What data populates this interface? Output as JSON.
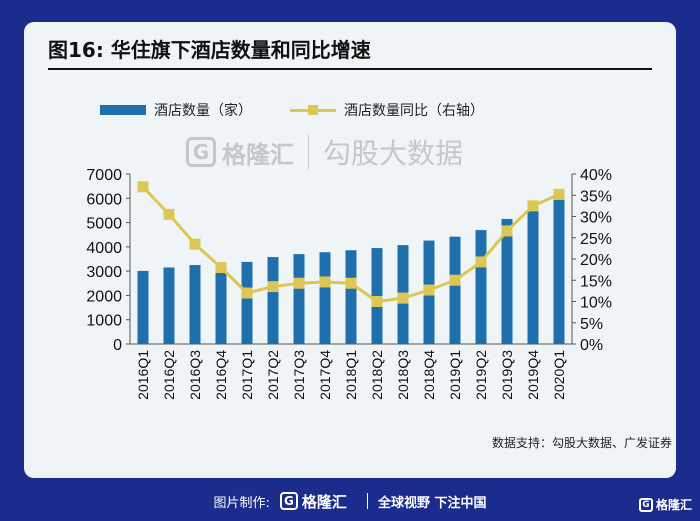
{
  "header": {
    "title": "图16: 华住旗下酒店数量和同比增速"
  },
  "watermark": {
    "logo_letter": "G",
    "brand": "格隆汇",
    "partner": "勾股大数据"
  },
  "source": "数据支持：勾股大数据、广发证券",
  "footer": {
    "made_by": "图片制作:",
    "logo_letter": "G",
    "brand": "格隆汇",
    "slogan": "全球视野 下注中国"
  },
  "corner_logo": {
    "letter": "G",
    "brand": "格隆汇"
  },
  "colors": {
    "bar": "#1f6fad",
    "line": "#dcc756",
    "background": "#1b2c8c",
    "panel": "#eff5f7"
  },
  "chart_data": {
    "type": "bar",
    "title": "图16: 华住旗下酒店数量和同比增速",
    "categories": [
      "2016Q1",
      "2016Q2",
      "2016Q3",
      "2016Q4",
      "2017Q1",
      "2017Q2",
      "2017Q3",
      "2017Q4",
      "2018Q1",
      "2018Q2",
      "2018Q3",
      "2018Q4",
      "2019Q1",
      "2019Q2",
      "2019Q3",
      "2019Q4",
      "2020Q1"
    ],
    "series": [
      {
        "name": "酒店数量（家）",
        "type": "bar",
        "axis": "left",
        "values": [
          3010,
          3150,
          3250,
          3270,
          3380,
          3580,
          3700,
          3780,
          3860,
          3950,
          4070,
          4260,
          4420,
          4690,
          5150,
          5620,
          6000
        ]
      },
      {
        "name": "酒店数量同比（右轴）",
        "type": "line",
        "axis": "right",
        "values": [
          37.0,
          30.5,
          23.5,
          18.0,
          12.0,
          13.5,
          14.3,
          14.6,
          14.3,
          10.0,
          10.8,
          12.7,
          15.0,
          19.3,
          26.6,
          32.5,
          35.2
        ]
      }
    ],
    "ylim_left": [
      0,
      7000
    ],
    "yticks_left": [
      "0",
      "1000",
      "2000",
      "3000",
      "4000",
      "5000",
      "6000",
      "7000"
    ],
    "ylim_right": [
      0,
      40
    ],
    "yticks_right": [
      "0%",
      "5%",
      "10%",
      "15%",
      "20%",
      "25%",
      "30%",
      "35%",
      "40%"
    ],
    "xlabel": "",
    "ylabel": "",
    "grid": false,
    "legend": "top"
  }
}
